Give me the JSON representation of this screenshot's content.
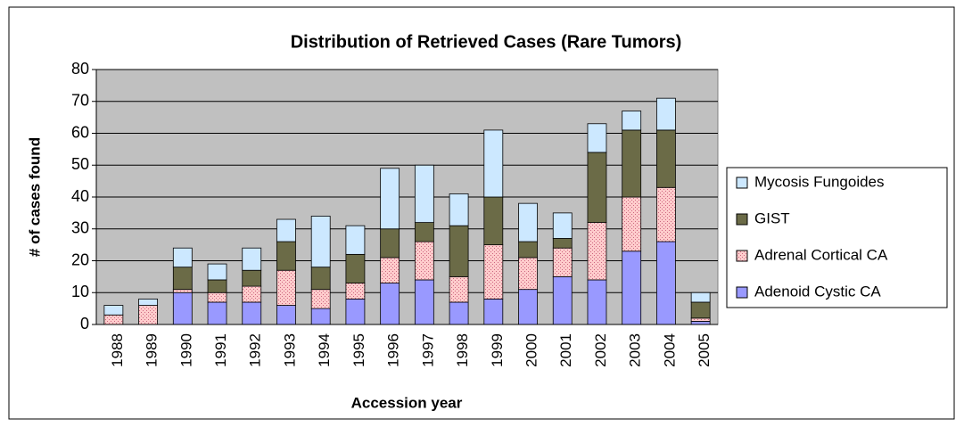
{
  "chart_data": {
    "type": "stacked_bar",
    "title": "Distribution of Retrieved Cases (Rare Tumors)",
    "x_label": "Accession year",
    "y_label": "# of cases found",
    "categories": [
      "1988",
      "1989",
      "1990",
      "1991",
      "1992",
      "1993",
      "1994",
      "1995",
      "1996",
      "1997",
      "1998",
      "1999",
      "2000",
      "2001",
      "2002",
      "2003",
      "2004",
      "2005"
    ],
    "series": [
      {
        "name": "Adenoid Cystic CA",
        "color": "#9999ff",
        "values": [
          0,
          0,
          10,
          7,
          7,
          6,
          5,
          8,
          13,
          14,
          7,
          8,
          11,
          15,
          14,
          23,
          26,
          1
        ]
      },
      {
        "name": "Adrenal Cortical CA",
        "color": "#ffcccc",
        "hatch": true,
        "values": [
          3,
          6,
          1,
          3,
          5,
          11,
          6,
          5,
          8,
          12,
          8,
          17,
          10,
          9,
          18,
          17,
          17,
          1
        ]
      },
      {
        "name": "GIST",
        "color": "#6b6b47",
        "values": [
          0,
          0,
          7,
          4,
          5,
          9,
          7,
          9,
          9,
          6,
          16,
          15,
          5,
          3,
          22,
          21,
          18,
          5
        ]
      },
      {
        "name": "Mycosis Fungoides",
        "color": "#cce8ff",
        "values": [
          3,
          2,
          6,
          5,
          7,
          7,
          16,
          9,
          19,
          18,
          10,
          21,
          12,
          8,
          9,
          6,
          10,
          3
        ]
      }
    ],
    "ylim": [
      0,
      80
    ],
    "yticks": [
      0,
      10,
      20,
      30,
      40,
      50,
      60,
      70,
      80
    ],
    "grid": true,
    "legend": "right"
  }
}
